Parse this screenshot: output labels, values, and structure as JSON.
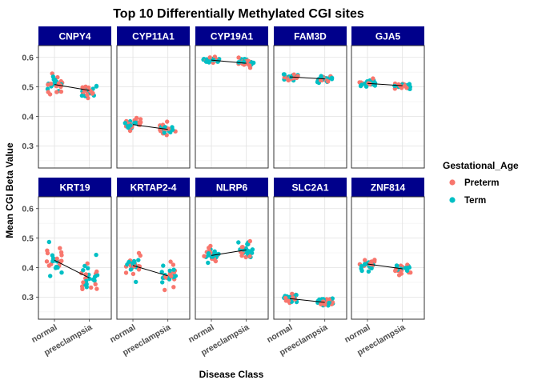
{
  "chart_data": {
    "type": "scatter",
    "title": "Top 10 Differentially Methylated CGI sites",
    "xlabel": "Disease Class",
    "ylabel": "Mean CGI Beta Value",
    "categories": [
      "normal",
      "preeclampsia"
    ],
    "ylim": [
      0.225,
      0.64
    ],
    "yticks": [
      0.3,
      0.4,
      0.5,
      0.6
    ],
    "yticklabels": [
      "0.3",
      "0.4",
      "0.5",
      "0.6"
    ],
    "grid": true,
    "legend": {
      "title": "Gestational_Age",
      "position": "right",
      "entries": [
        {
          "label": "Preterm",
          "color": "#F8766D"
        },
        {
          "label": "Term",
          "color": "#00BFC4"
        }
      ]
    },
    "strip_color": "#00008B",
    "panels": [
      {
        "name": "CNPY4",
        "means": [
          0.508,
          0.488
        ],
        "ranges": [
          [
            0.465,
            0.565
          ],
          [
            0.445,
            0.535
          ]
        ]
      },
      {
        "name": "CYP11A1",
        "means": [
          0.372,
          0.356
        ],
        "ranges": [
          [
            0.345,
            0.4
          ],
          [
            0.32,
            0.39
          ]
        ]
      },
      {
        "name": "CYP19A1",
        "means": [
          0.591,
          0.58
        ],
        "ranges": [
          [
            0.575,
            0.605
          ],
          [
            0.565,
            0.608
          ]
        ]
      },
      {
        "name": "FAM3D",
        "means": [
          0.534,
          0.527
        ],
        "ranges": [
          [
            0.515,
            0.558
          ],
          [
            0.51,
            0.55
          ]
        ]
      },
      {
        "name": "GJA5",
        "means": [
          0.512,
          0.504
        ],
        "ranges": [
          [
            0.49,
            0.535
          ],
          [
            0.485,
            0.525
          ]
        ]
      },
      {
        "name": "KRT19",
        "means": [
          0.425,
          0.365
        ],
        "ranges": [
          [
            0.315,
            0.5
          ],
          [
            0.25,
            0.46
          ]
        ]
      },
      {
        "name": "KRTAP2-4",
        "means": [
          0.407,
          0.372
        ],
        "ranges": [
          [
            0.34,
            0.475
          ],
          [
            0.3,
            0.42
          ]
        ]
      },
      {
        "name": "NLRP6",
        "means": [
          0.441,
          0.46
        ],
        "ranges": [
          [
            0.415,
            0.49
          ],
          [
            0.415,
            0.505
          ]
        ]
      },
      {
        "name": "SLC2A1",
        "means": [
          0.295,
          0.282
        ],
        "ranges": [
          [
            0.27,
            0.32
          ],
          [
            0.265,
            0.31
          ]
        ]
      },
      {
        "name": "ZNF814",
        "means": [
          0.412,
          0.396
        ],
        "ranges": [
          [
            0.38,
            0.44
          ],
          [
            0.365,
            0.43
          ]
        ]
      }
    ]
  }
}
